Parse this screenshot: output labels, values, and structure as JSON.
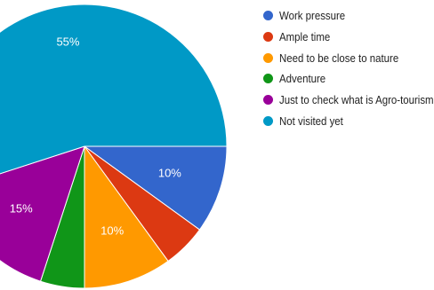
{
  "chart_data": {
    "type": "pie",
    "slices": [
      {
        "name": "Work pressure",
        "value": 10,
        "label": "10%",
        "color": "#3366cc"
      },
      {
        "name": "Ample time",
        "value": 5,
        "label": "",
        "color": "#dc3912"
      },
      {
        "name": "Need to be close to nature",
        "value": 10,
        "label": "10%",
        "color": "#ff9900"
      },
      {
        "name": "Adventure",
        "value": 5,
        "label": "",
        "color": "#109618"
      },
      {
        "name": "Just to check what is Agro-tourism",
        "value": 15,
        "label": "15%",
        "color": "#990099"
      },
      {
        "name": "Not visited yet",
        "value": 55,
        "label": "55%",
        "color": "#0099c6"
      }
    ],
    "legend_position": "right"
  }
}
